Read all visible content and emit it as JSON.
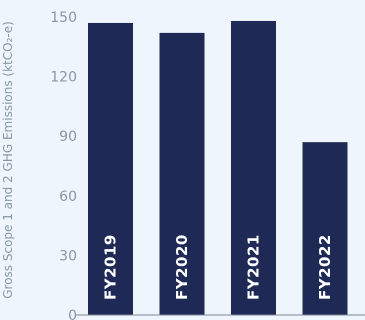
{
  "chart_data": {
    "type": "bar",
    "categories": [
      "FY2019",
      "FY2020",
      "FY2021",
      "FY2022"
    ],
    "values": [
      147,
      142,
      148,
      87
    ],
    "ylabel": "Gross Scope 1 and 2 GHG Emissions (ktCO₂-e)",
    "yticks": [
      0,
      30,
      60,
      90,
      120,
      150
    ],
    "ylim": [
      0,
      150
    ],
    "grid": false,
    "bar_color": "#1e2a55",
    "axis_color": "#7d8796"
  }
}
